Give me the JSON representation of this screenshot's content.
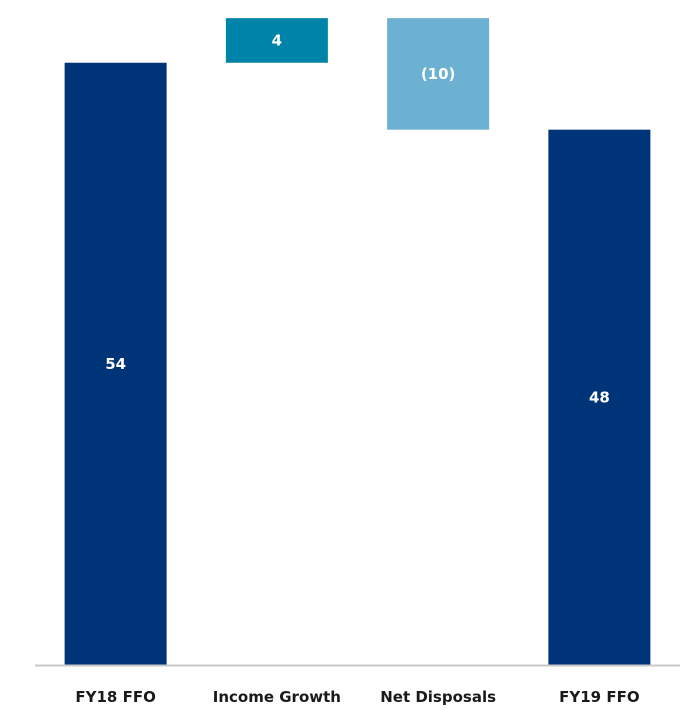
{
  "chart_data": {
    "type": "bar",
    "subtype": "waterfall",
    "categories": [
      "FY18 FFO",
      "Income Growth",
      "Net Disposals",
      "FY19 FFO"
    ],
    "values": [
      54,
      4,
      -10,
      48
    ],
    "bar_kinds": [
      "total",
      "increase",
      "decrease",
      "total"
    ],
    "data_labels": [
      "54",
      "4",
      "(10)",
      "48"
    ],
    "ylim": [
      0,
      59
    ],
    "grid": false,
    "legend": "none",
    "colors": {
      "total": "#003478",
      "increase": "#0083A9",
      "decrease": "#6CB1D1",
      "axis": "#c8c8c8",
      "data_label": "#ffffff",
      "category_label": "#1a1a1a"
    }
  }
}
